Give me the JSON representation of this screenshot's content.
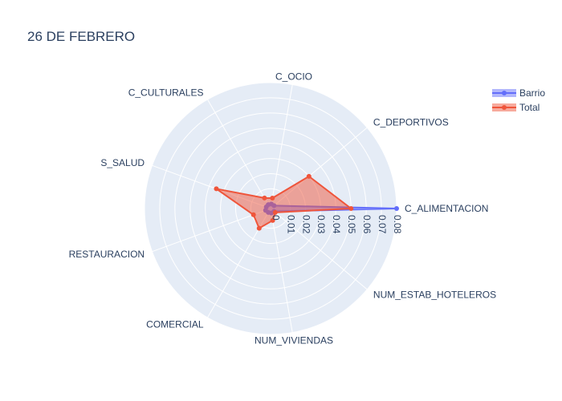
{
  "chart_data": {
    "type": "radar",
    "title": "26 DE FEBRERO",
    "categories": [
      "C_ALIMENTACION",
      "C_DEPORTIVOS",
      "C_OCIO",
      "C_CULTURALES",
      "S_SALUD",
      "RESTAURACION",
      "COMERCIAL",
      "NUM_VIVIENDAS",
      "NUM_ESTAB_HOTELEROS"
    ],
    "radial_ticks": [
      "0",
      "0.01",
      "0.02",
      "0.03",
      "0.04",
      "0.05",
      "0.06",
      "0.07",
      "0.08"
    ],
    "radial_range": [
      -0.003,
      0.08
    ],
    "radial_angle": "horizontal-right",
    "legend_position": "top-right",
    "grid": true,
    "series": [
      {
        "name": "Barrio",
        "color": "#636efa",
        "values": [
          0.08,
          0.0,
          0.0,
          0.0,
          0.0,
          0.0005,
          0.0,
          0.0,
          0.0
        ]
      },
      {
        "name": "Total",
        "color": "#ef553b",
        "values": [
          0.05,
          0.03,
          0.004,
          0.005,
          0.035,
          0.009,
          0.012,
          0.005,
          0.001
        ]
      }
    ]
  }
}
